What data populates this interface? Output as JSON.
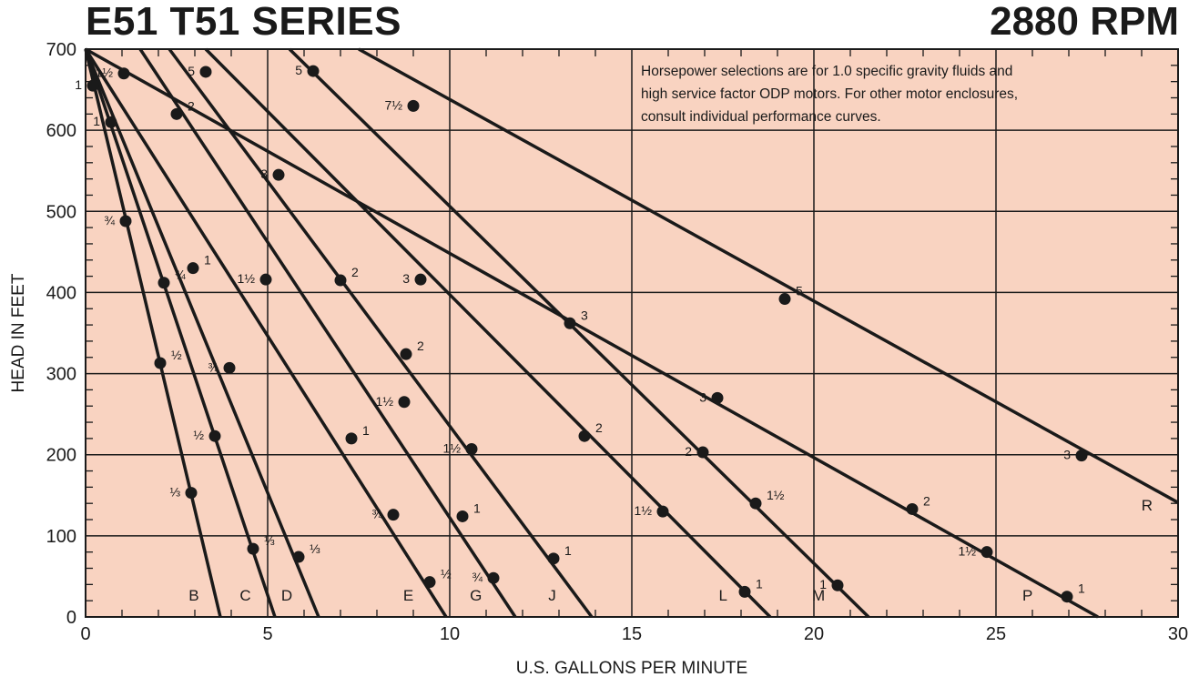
{
  "chart_data": {
    "type": "line",
    "title": "E51 T51 SERIES",
    "subtitle": "2880 RPM",
    "xlabel": "U.S. GALLONS PER MINUTE",
    "ylabel": "HEAD IN FEET",
    "xlim": [
      0,
      30
    ],
    "ylim": [
      0,
      700
    ],
    "xticks": [
      0,
      5,
      10,
      15,
      20,
      25,
      30
    ],
    "yticks": [
      0,
      100,
      200,
      300,
      400,
      500,
      600,
      700
    ],
    "grid": true,
    "note": [
      "Horsepower selections are for 1.0 specific gravity fluids and",
      "high service factor ODP motors. For other motor enclosures,",
      "consult individual performance curves."
    ],
    "colors": {
      "plot_bg": "#f9d3c1",
      "line": "#1a1a1a"
    },
    "series": [
      {
        "name": "B",
        "x": [
          0,
          3.7
        ],
        "y": [
          700,
          0
        ],
        "points": [
          {
            "x": 1.1,
            "y": 488,
            "label": "¾"
          },
          {
            "x": 2.05,
            "y": 313,
            "label": "½"
          },
          {
            "x": 2.9,
            "y": 153,
            "label": "⅓"
          }
        ]
      },
      {
        "name": "C",
        "x": [
          0,
          5.2
        ],
        "y": [
          700,
          0
        ],
        "points": [
          {
            "x": 0.2,
            "y": 655,
            "label": "1"
          },
          {
            "x": 2.15,
            "y": 412,
            "label": "¾"
          },
          {
            "x": 3.55,
            "y": 223,
            "label": "½"
          },
          {
            "x": 4.6,
            "y": 84,
            "label": "⅓"
          }
        ]
      },
      {
        "name": "D",
        "x": [
          0,
          6.4
        ],
        "y": [
          700,
          0
        ],
        "points": [
          {
            "x": 0.7,
            "y": 610,
            "label": "1"
          },
          {
            "x": 2.95,
            "y": 430,
            "label": "1"
          },
          {
            "x": 3.95,
            "y": 307,
            "label": "¾"
          },
          {
            "x": 5.85,
            "y": 74,
            "label": "⅓"
          }
        ]
      },
      {
        "name": "E",
        "x": [
          0,
          9.9
        ],
        "y": [
          700,
          0
        ],
        "points": [
          {
            "x": 1.05,
            "y": 670,
            "label": "1½"
          },
          {
            "x": 2.5,
            "y": 620,
            "label": "2"
          },
          {
            "x": 4.95,
            "y": 416,
            "label": "1½"
          },
          {
            "x": 7.3,
            "y": 220,
            "label": "1"
          },
          {
            "x": 8.45,
            "y": 126,
            "label": "¾"
          },
          {
            "x": 9.45,
            "y": 43,
            "label": "½"
          }
        ]
      },
      {
        "name": "G",
        "x": [
          1.5,
          11.8
        ],
        "y": [
          700,
          0
        ],
        "points": [
          {
            "x": 5.3,
            "y": 545,
            "label": "3"
          },
          {
            "x": 7.0,
            "y": 415,
            "label": "2"
          },
          {
            "x": 8.75,
            "y": 265,
            "label": "1½"
          },
          {
            "x": 10.35,
            "y": 124,
            "label": "1"
          },
          {
            "x": 11.2,
            "y": 48,
            "label": "¾"
          }
        ]
      },
      {
        "name": "J",
        "x": [
          2.3,
          13.9
        ],
        "y": [
          700,
          0
        ],
        "points": [
          {
            "x": 3.3,
            "y": 672,
            "label": "5"
          },
          {
            "x": 8.8,
            "y": 324,
            "label": "2"
          },
          {
            "x": 10.6,
            "y": 207,
            "label": "1½"
          },
          {
            "x": 12.85,
            "y": 72,
            "label": "1"
          }
        ]
      },
      {
        "name": "L",
        "x": [
          3.3,
          18.8
        ],
        "y": [
          700,
          0
        ],
        "points": [
          {
            "x": 9.2,
            "y": 416,
            "label": "3"
          },
          {
            "x": 13.7,
            "y": 223,
            "label": "2"
          },
          {
            "x": 15.85,
            "y": 130,
            "label": "1½"
          },
          {
            "x": 18.1,
            "y": 31,
            "label": "1"
          }
        ]
      },
      {
        "name": "M",
        "x": [
          5.6,
          21.5
        ],
        "y": [
          700,
          0
        ],
        "points": [
          {
            "x": 6.25,
            "y": 673,
            "label": "5"
          },
          {
            "x": 13.3,
            "y": 362,
            "label": "3"
          },
          {
            "x": 16.95,
            "y": 203,
            "label": "2"
          },
          {
            "x": 18.4,
            "y": 140,
            "label": "1½"
          },
          {
            "x": 20.65,
            "y": 39,
            "label": "1"
          }
        ]
      },
      {
        "name": "P",
        "x": [
          0,
          27.8
        ],
        "y": [
          700,
          0
        ],
        "points": [
          {
            "x": 17.35,
            "y": 270,
            "label": "3"
          },
          {
            "x": 22.7,
            "y": 133,
            "label": "2"
          },
          {
            "x": 24.75,
            "y": 80,
            "label": "1½"
          },
          {
            "x": 26.95,
            "y": 25,
            "label": "1"
          }
        ]
      },
      {
        "name": "R",
        "x": [
          7.5,
          30
        ],
        "y": [
          700,
          141
        ],
        "points": [
          {
            "x": 9.0,
            "y": 630,
            "label": "7½"
          },
          {
            "x": 19.2,
            "y": 392,
            "label": "5"
          },
          {
            "x": 27.35,
            "y": 199,
            "label": "3"
          }
        ]
      }
    ]
  }
}
